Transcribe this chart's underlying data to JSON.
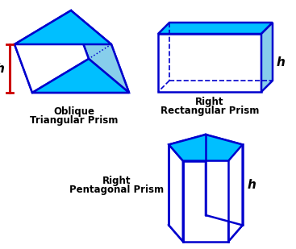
{
  "bg_color": "#ffffff",
  "top_fill": "#00bfff",
  "side_fill": "#87ceeb",
  "white_fill": "#ffffff",
  "edge_color": "#0000cd",
  "red_color": "#cc0000",
  "label_color": "#000000",
  "oblique_label_1": "Oblique",
  "oblique_label_2": "Triangular Prism",
  "rect_label_1": "Right",
  "rect_label_2": "Rectangular Prism",
  "pent_label_1": "Right",
  "pent_label_2": "Pentagonal Prism",
  "h_label": "h"
}
